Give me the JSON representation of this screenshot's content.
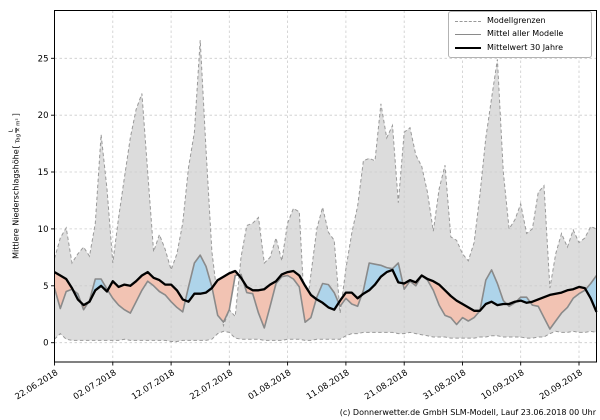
{
  "footer": {
    "text": "(c) Donnerwetter.de GmbH SLM-Modell, Lauf 23.06.2018 00 Uhr"
  },
  "axes": {
    "y": {
      "label": "Mittlere Niederschlagshöhe",
      "bracket_open": "[",
      "unit_numerator": "L",
      "unit_denominator": "Tag × m²",
      "bracket_close": "]"
    }
  },
  "legend": {
    "items": [
      {
        "label": "Modellgrenzen",
        "style": "dashed-gray"
      },
      {
        "label": "Mittel aller Modelle",
        "style": "solid-gray"
      },
      {
        "label": "Mittelwert 30 Jahre",
        "style": "solid-black"
      }
    ]
  },
  "chart_data": {
    "type": "line",
    "title": "",
    "xlabel": "",
    "ylabel": "Mittlere Niederschlagshöhe [L/(Tag × m²)]",
    "x_unit": "day index, day 0 = 22.06.2018, one value per day",
    "x_range": [
      0,
      93
    ],
    "x_tick_positions": [
      0,
      10,
      20,
      30,
      40,
      50,
      60,
      70,
      80,
      90
    ],
    "x_tick_labels": [
      "22.06.2018",
      "02.07.2018",
      "12.07.2018",
      "22.07.2018",
      "01.08.2018",
      "11.08.2018",
      "21.08.2018",
      "31.08.2018",
      "10.09.2018",
      "20.09.2018"
    ],
    "y_ticks": [
      0,
      5,
      10,
      15,
      20,
      25
    ],
    "ylim": [
      -1.7,
      29.2
    ],
    "grid": true,
    "legend_position": "upper right",
    "series": [
      {
        "name": "Modellgrenze oben",
        "role": "envelope-upper",
        "style": "dashed-gray",
        "values": [
          7.4,
          9.2,
          10.1,
          7.0,
          7.8,
          8.4,
          7.6,
          10.5,
          18.3,
          13.5,
          7.0,
          11.0,
          14.5,
          18.0,
          20.5,
          21.9,
          15.0,
          8.0,
          9.5,
          8.2,
          6.4,
          7.8,
          10.5,
          15.4,
          18.5,
          26.6,
          17.0,
          8.0,
          3.8,
          1.5,
          2.9,
          2.3,
          7.5,
          10.3,
          10.5,
          11.0,
          7.0,
          7.5,
          9.2,
          7.2,
          10.5,
          11.8,
          11.5,
          2.0,
          6.0,
          10.0,
          11.9,
          9.7,
          9.0,
          2.6,
          6.5,
          9.6,
          12.0,
          16.0,
          16.2,
          16.0,
          21.0,
          18.0,
          19.1,
          12.3,
          18.5,
          18.9,
          16.5,
          15.5,
          13.2,
          9.8,
          13.5,
          15.6,
          9.3,
          9.0,
          7.8,
          7.2,
          8.8,
          13.0,
          18.0,
          21.5,
          24.9,
          15.0,
          10.0,
          10.8,
          12.2,
          9.6,
          10.0,
          13.2,
          13.8,
          4.8,
          7.8,
          9.6,
          8.4,
          9.9,
          8.8,
          9.2,
          10.2,
          10.0
        ]
      },
      {
        "name": "Modellgrenze unten",
        "role": "envelope-lower",
        "style": "dashed-gray",
        "values": [
          0.3,
          0.8,
          0.3,
          0.2,
          0.2,
          0.2,
          0.2,
          0.2,
          0.2,
          0.2,
          0.2,
          0.2,
          0.3,
          0.2,
          0.2,
          0.2,
          0.2,
          0.2,
          0.2,
          0.2,
          0.1,
          0.1,
          0.2,
          0.2,
          0.2,
          0.2,
          0.2,
          0.3,
          0.8,
          1.0,
          0.9,
          0.4,
          0.3,
          0.3,
          0.3,
          0.3,
          0.2,
          0.2,
          0.2,
          0.2,
          0.3,
          0.3,
          0.3,
          0.2,
          0.2,
          0.3,
          0.3,
          0.3,
          0.3,
          0.3,
          0.6,
          0.8,
          0.8,
          0.9,
          0.9,
          0.9,
          0.9,
          0.9,
          0.9,
          0.8,
          0.8,
          0.9,
          0.8,
          0.7,
          0.6,
          0.5,
          0.5,
          0.5,
          0.4,
          0.4,
          0.4,
          0.4,
          0.4,
          0.5,
          0.5,
          0.6,
          0.6,
          0.5,
          0.5,
          0.5,
          0.5,
          0.4,
          0.4,
          0.5,
          0.5,
          0.8,
          1.0,
          0.9,
          0.9,
          1.0,
          0.9,
          0.9,
          1.0,
          0.9
        ]
      },
      {
        "name": "Mittel aller Modelle",
        "role": "model-mean",
        "style": "solid-gray",
        "values": [
          4.8,
          3.0,
          4.5,
          4.7,
          4.3,
          2.9,
          3.7,
          5.6,
          5.6,
          4.7,
          3.9,
          3.3,
          2.9,
          2.6,
          3.6,
          4.6,
          5.4,
          5.0,
          4.5,
          4.2,
          3.6,
          3.1,
          2.7,
          4.9,
          7.0,
          7.7,
          6.7,
          4.9,
          2.4,
          1.8,
          2.9,
          5.9,
          6.0,
          4.4,
          4.3,
          2.6,
          1.3,
          3.2,
          5.2,
          5.8,
          5.9,
          5.6,
          4.9,
          1.8,
          2.2,
          4.0,
          5.2,
          5.1,
          4.4,
          3.2,
          3.9,
          3.4,
          3.2,
          4.6,
          7.0,
          6.9,
          6.8,
          6.6,
          6.5,
          7.0,
          4.7,
          5.4,
          5.0,
          5.9,
          5.5,
          4.6,
          3.3,
          2.4,
          2.2,
          1.6,
          2.2,
          1.9,
          2.2,
          2.8,
          5.5,
          6.4,
          5.2,
          3.7,
          3.2,
          3.5,
          4.0,
          4.0,
          3.3,
          3.2,
          2.2,
          1.2,
          1.9,
          2.6,
          3.1,
          3.9,
          4.3,
          4.6,
          5.2,
          5.9
        ]
      },
      {
        "name": "Mittelwert 30 Jahre",
        "role": "mean-30y",
        "style": "solid-black",
        "values": [
          6.2,
          5.9,
          5.6,
          4.8,
          3.8,
          3.3,
          3.6,
          4.6,
          5.0,
          4.5,
          5.4,
          4.9,
          5.1,
          5.0,
          5.4,
          5.9,
          6.2,
          5.7,
          5.5,
          5.1,
          5.1,
          4.6,
          3.8,
          3.6,
          4.3,
          4.3,
          4.4,
          4.8,
          5.5,
          5.8,
          6.1,
          6.3,
          5.7,
          4.9,
          4.6,
          4.6,
          4.7,
          5.1,
          5.4,
          6.0,
          6.2,
          6.3,
          5.9,
          5.0,
          4.2,
          3.8,
          3.5,
          3.1,
          2.9,
          3.7,
          4.4,
          4.4,
          3.9,
          4.3,
          4.6,
          5.1,
          5.8,
          6.2,
          6.4,
          5.3,
          5.2,
          5.5,
          5.3,
          5.9,
          5.6,
          5.4,
          5.1,
          4.6,
          4.1,
          3.7,
          3.4,
          3.1,
          2.8,
          2.8,
          3.4,
          3.6,
          3.3,
          3.4,
          3.4,
          3.6,
          3.7,
          3.5,
          3.6,
          3.8,
          4.0,
          4.2,
          4.3,
          4.4,
          4.6,
          4.7,
          4.9,
          4.8,
          3.9,
          2.7
        ]
      }
    ],
    "fills": {
      "envelope": "between envelope-upper and envelope-lower",
      "above": "model-mean above mean-30y",
      "below": "model-mean below mean-30y"
    },
    "colors": {
      "envelope_fill": "#dcdcdc",
      "envelope_edge": "#999999",
      "above_fill": "#aed4ea",
      "below_fill": "#f2c3b3",
      "model_mean_line": "#8a8a8a",
      "mean_30y_line": "#000000",
      "grid": "#cccccc",
      "spine": "#000000"
    }
  }
}
